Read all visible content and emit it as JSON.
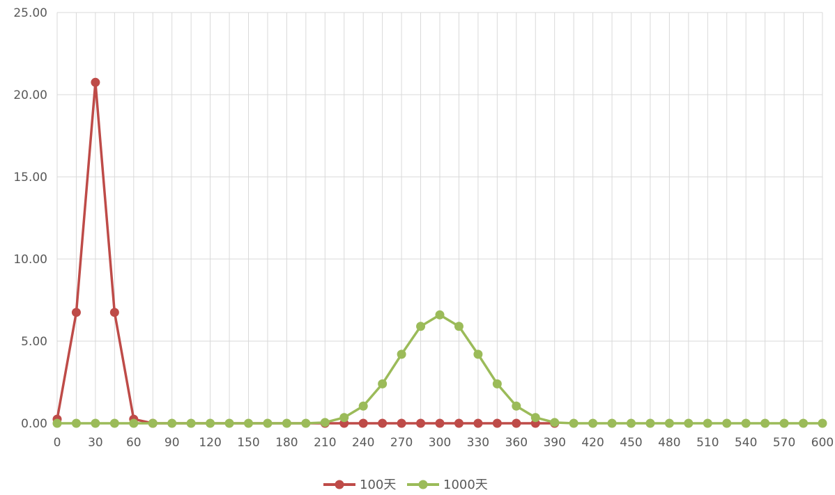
{
  "chart_data": {
    "type": "line",
    "title": "",
    "xlabel": "",
    "ylabel": "",
    "x": [
      0,
      15,
      30,
      45,
      60,
      75,
      90,
      105,
      120,
      135,
      150,
      165,
      180,
      195,
      210,
      225,
      240,
      255,
      270,
      285,
      300,
      315,
      330,
      345,
      360,
      375,
      390,
      405,
      420,
      435,
      450,
      465,
      480,
      495,
      510,
      525,
      540,
      555,
      570,
      585,
      600
    ],
    "xticks": [
      "0",
      "30",
      "60",
      "90",
      "120",
      "150",
      "180",
      "210",
      "240",
      "270",
      "300",
      "330",
      "360",
      "390",
      "420",
      "450",
      "480",
      "510",
      "540",
      "570",
      "600"
    ],
    "yticks": [
      "0.00",
      "5.00",
      "10.00",
      "15.00",
      "20.00",
      "25.00"
    ],
    "ylim": [
      0,
      25
    ],
    "xlim": [
      0,
      600
    ],
    "grid": true,
    "legend_position": "bottom",
    "series": [
      {
        "name": "100天",
        "color": "#be4b48",
        "x": [
          0,
          15,
          30,
          45,
          60,
          75,
          210,
          225,
          240,
          255,
          270,
          285,
          300,
          315,
          330,
          345,
          360,
          375,
          390
        ],
        "values": [
          0.25,
          6.75,
          20.75,
          6.75,
          0.25,
          0,
          0,
          0,
          0,
          0,
          0,
          0,
          0,
          0,
          0,
          0,
          0,
          0,
          0
        ]
      },
      {
        "name": "1000天",
        "color": "#9bbb59",
        "x": [
          0,
          15,
          30,
          45,
          60,
          75,
          90,
          105,
          120,
          135,
          150,
          165,
          180,
          195,
          210,
          225,
          240,
          255,
          270,
          285,
          300,
          315,
          330,
          345,
          360,
          375,
          390,
          405,
          420,
          435,
          450,
          465,
          480,
          495,
          510,
          525,
          540,
          555,
          570,
          585,
          600
        ],
        "values": [
          0,
          0,
          0,
          0,
          0,
          0,
          0,
          0,
          0,
          0,
          0,
          0,
          0,
          0,
          0.05,
          0.35,
          1.05,
          2.4,
          4.2,
          5.9,
          6.6,
          5.9,
          4.2,
          2.4,
          1.05,
          0.35,
          0.05,
          0,
          0,
          0,
          0,
          0,
          0,
          0,
          0,
          0,
          0,
          0,
          0,
          0,
          0
        ]
      }
    ]
  }
}
